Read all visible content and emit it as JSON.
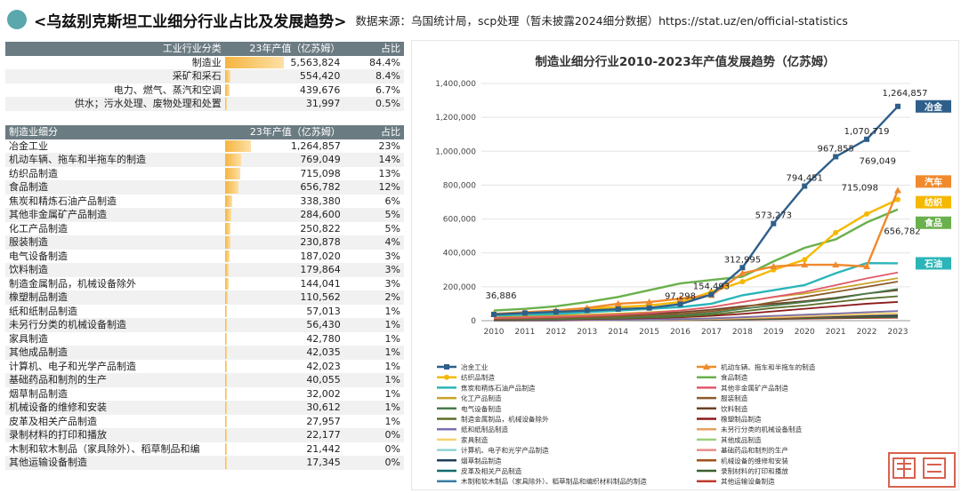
{
  "header": {
    "title": "<乌兹别克斯坦工业细分行业占比及发展趋势>",
    "source": "数据来源：乌国统计局，scp处理（暂未披露2024细分数据）https://stat.uz/en/official-statistics"
  },
  "table1": {
    "headers": [
      "工业行业分类",
      "23年产值（亿苏姆）",
      "占比"
    ],
    "rows": [
      {
        "name": "制造业",
        "value": "5,563,824",
        "share": "84.4%",
        "frac": 1.0
      },
      {
        "name": "采矿和采石",
        "value": "554,420",
        "share": "8.4%",
        "frac": 0.0996
      },
      {
        "name": "电力、燃气、蒸汽和空调",
        "value": "439,676",
        "share": "6.7%",
        "frac": 0.079
      },
      {
        "name": "供水；污水处理、废物处理和处置",
        "value": "31,997",
        "share": "0.5%",
        "frac": 0.0058
      }
    ]
  },
  "table2": {
    "headers": [
      "制造业细分",
      "23年产值（亿苏姆）",
      "占比"
    ],
    "rows": [
      {
        "name": "冶金工业",
        "value": "1,264,857",
        "share": "23%",
        "frac": 0.227
      },
      {
        "name": "机动车辆、拖车和半拖车的制造",
        "value": "769,049",
        "share": "14%",
        "frac": 0.138
      },
      {
        "name": "纺织品制造",
        "value": "715,098",
        "share": "13%",
        "frac": 0.129
      },
      {
        "name": "食品制造",
        "value": "656,782",
        "share": "12%",
        "frac": 0.118
      },
      {
        "name": "焦炭和精炼石油产品制造",
        "value": "338,380",
        "share": "6%",
        "frac": 0.061
      },
      {
        "name": "其他非金属矿产品制造",
        "value": "284,600",
        "share": "5%",
        "frac": 0.051
      },
      {
        "name": "化工产品制造",
        "value": "250,822",
        "share": "5%",
        "frac": 0.045
      },
      {
        "name": "服装制造",
        "value": "230,878",
        "share": "4%",
        "frac": 0.041
      },
      {
        "name": "电气设备制造",
        "value": "187,020",
        "share": "3%",
        "frac": 0.034
      },
      {
        "name": "饮料制造",
        "value": "179,864",
        "share": "3%",
        "frac": 0.032
      },
      {
        "name": "制造金属制品，机械设备除外",
        "value": "144,041",
        "share": "3%",
        "frac": 0.026
      },
      {
        "name": "橡塑制品制造",
        "value": "110,562",
        "share": "2%",
        "frac": 0.02
      },
      {
        "name": "纸和纸制品制造",
        "value": "57,013",
        "share": "1%",
        "frac": 0.01
      },
      {
        "name": "未另行分类的机械设备制造",
        "value": "56,430",
        "share": "1%",
        "frac": 0.01
      },
      {
        "name": "家具制造",
        "value": "42,780",
        "share": "1%",
        "frac": 0.008
      },
      {
        "name": "其他成品制造",
        "value": "42,035",
        "share": "1%",
        "frac": 0.008
      },
      {
        "name": "计算机、电子和光学产品制造",
        "value": "42,023",
        "share": "1%",
        "frac": 0.008
      },
      {
        "name": "基础药品和制剂的生产",
        "value": "40,055",
        "share": "1%",
        "frac": 0.007
      },
      {
        "name": "烟草制品制造",
        "value": "32,002",
        "share": "1%",
        "frac": 0.006
      },
      {
        "name": "机械设备的维修和安装",
        "value": "30,612",
        "share": "1%",
        "frac": 0.006
      },
      {
        "name": "皮革及相关产品制造",
        "value": "27,957",
        "share": "1%",
        "frac": 0.005
      },
      {
        "name": "录制材料的打印和播放",
        "value": "22,177",
        "share": "0%",
        "frac": 0.004
      },
      {
        "name": "木制和软木制品（家具除外）、稻草制品和编",
        "value": "21,442",
        "share": "0%",
        "frac": 0.004
      },
      {
        "name": "其他运输设备制造",
        "value": "17,345",
        "share": "0%",
        "frac": 0.003
      }
    ]
  },
  "chart_data": {
    "type": "line",
    "title": "制造业细分行业2010-2023年产值发展趋势（亿苏姆）",
    "x": [
      2010,
      2011,
      2012,
      2013,
      2014,
      2015,
      2016,
      2017,
      2018,
      2019,
      2020,
      2021,
      2022,
      2023
    ],
    "ylim": [
      0,
      1400000
    ],
    "yticks": [
      "0",
      "200,000",
      "400,000",
      "600,000",
      "800,000",
      "1,000,000",
      "1,200,000",
      "1,400,000"
    ],
    "grid": true,
    "legend_position": "bottom",
    "point_labels": [
      {
        "series": 0,
        "x": 2010,
        "text": "36,886"
      },
      {
        "series": 0,
        "x": 2016,
        "text": "97,298"
      },
      {
        "series": 0,
        "x": 2017,
        "text": "154,493"
      },
      {
        "series": 0,
        "x": 2018,
        "text": "312,995"
      },
      {
        "series": 0,
        "x": 2019,
        "text": "573,273"
      },
      {
        "series": 0,
        "x": 2020,
        "text": "794,451"
      },
      {
        "series": 0,
        "x": 2021,
        "text": "967,855"
      },
      {
        "series": 0,
        "x": 2022,
        "text": "1,070,719"
      },
      {
        "series": 0,
        "x": 2023,
        "text": "1,264,857"
      },
      {
        "series": 1,
        "x": 2023,
        "text": "769,049"
      },
      {
        "series": 2,
        "x": 2023,
        "text": "715,098"
      },
      {
        "series": 3,
        "x": 2023,
        "text": "656,782"
      }
    ],
    "tags": [
      {
        "series": 0,
        "text": "冶金",
        "color": "#2e5f8a"
      },
      {
        "series": 1,
        "text": "汽车",
        "color": "#f08a2c"
      },
      {
        "series": 2,
        "text": "纺织",
        "color": "#f5b800"
      },
      {
        "series": 3,
        "text": "食品",
        "color": "#6ab04c"
      },
      {
        "series": 4,
        "text": "石油",
        "color": "#2bb5b8"
      }
    ],
    "series": [
      {
        "name": "冶金工业",
        "color": "#2e5f8a",
        "marker": "square",
        "values": [
          36886,
          45000,
          52000,
          60000,
          68000,
          75000,
          97298,
          154493,
          312995,
          573273,
          794451,
          967855,
          1070719,
          1264857
        ]
      },
      {
        "name": "机动车辆、拖车和半拖车的制造",
        "color": "#f08a2c",
        "marker": "triangle",
        "values": [
          40000,
          50000,
          60000,
          75000,
          100000,
          110000,
          130000,
          150000,
          280000,
          320000,
          330000,
          330000,
          320000,
          769049
        ]
      },
      {
        "name": "纺织品制造",
        "color": "#f5b800",
        "marker": "circle",
        "values": [
          38000,
          45000,
          55000,
          70000,
          80000,
          90000,
          110000,
          170000,
          230000,
          300000,
          360000,
          520000,
          630000,
          715098
        ]
      },
      {
        "name": "食品制造",
        "color": "#6ab04c",
        "marker": "none",
        "values": [
          60000,
          70000,
          85000,
          110000,
          140000,
          180000,
          220000,
          240000,
          260000,
          350000,
          430000,
          480000,
          580000,
          656782
        ]
      },
      {
        "name": "焦炭和精炼石油产品制造",
        "color": "#2bb5b8",
        "marker": "none",
        "values": [
          30000,
          35000,
          40000,
          50000,
          60000,
          70000,
          80000,
          100000,
          150000,
          180000,
          210000,
          280000,
          340000,
          338380
        ]
      },
      {
        "name": "其他非金属矿产品制造",
        "color": "#e05a6b",
        "marker": "none",
        "values": [
          15000,
          18000,
          22000,
          28000,
          35000,
          45000,
          60000,
          80000,
          110000,
          140000,
          170000,
          210000,
          250000,
          284600
        ]
      },
      {
        "name": "化工产品制造",
        "color": "#c9a227",
        "marker": "none",
        "values": [
          20000,
          24000,
          30000,
          36000,
          42000,
          50000,
          60000,
          80000,
          110000,
          140000,
          160000,
          190000,
          220000,
          250822
        ]
      },
      {
        "name": "服装制造",
        "color": "#8b5a2b",
        "marker": "none",
        "values": [
          10000,
          13000,
          16000,
          20000,
          25000,
          32000,
          40000,
          55000,
          80000,
          110000,
          140000,
          170000,
          200000,
          230878
        ]
      },
      {
        "name": "电气设备制造",
        "color": "#4a7a4a",
        "marker": "none",
        "values": [
          8000,
          10000,
          12000,
          15000,
          20000,
          25000,
          32000,
          45000,
          70000,
          90000,
          110000,
          130000,
          160000,
          187020
        ]
      },
      {
        "name": "饮料制造",
        "color": "#6b4226",
        "marker": "none",
        "values": [
          15000,
          18000,
          22000,
          27000,
          32000,
          40000,
          50000,
          65000,
          85000,
          100000,
          115000,
          135000,
          160000,
          179864
        ]
      },
      {
        "name": "制造金属制品，机械设备除外",
        "color": "#5a6e2a",
        "marker": "none",
        "values": [
          6000,
          7500,
          9000,
          11000,
          14000,
          18000,
          24000,
          35000,
          55000,
          75000,
          90000,
          110000,
          130000,
          144041
        ]
      },
      {
        "name": "橡塑制品制造",
        "color": "#8b1a1a",
        "marker": "none",
        "values": [
          5000,
          6000,
          7500,
          9000,
          12000,
          15000,
          20000,
          28000,
          40000,
          55000,
          70000,
          85000,
          100000,
          110562
        ]
      },
      {
        "name": "纸和纸制品制造",
        "color": "#7b6fb0",
        "marker": "none",
        "values": [
          2000,
          2500,
          3000,
          4000,
          5000,
          7000,
          9000,
          13000,
          20000,
          28000,
          35000,
          42000,
          50000,
          57013
        ]
      },
      {
        "name": "未另行分类的机械设备制造",
        "color": "#e6a15c",
        "marker": "none",
        "values": [
          2500,
          3000,
          3500,
          4500,
          6000,
          8000,
          10000,
          14000,
          20000,
          28000,
          35000,
          42000,
          50000,
          56430
        ]
      },
      {
        "name": "家具制造",
        "color": "#f7d36b",
        "marker": "none",
        "values": [
          2000,
          2400,
          2800,
          3500,
          4500,
          6000,
          8000,
          11000,
          16000,
          22000,
          28000,
          34000,
          39000,
          42780
        ]
      },
      {
        "name": "其他成品制造",
        "color": "#9bcf7a",
        "marker": "none",
        "values": [
          1800,
          2200,
          2600,
          3300,
          4200,
          5500,
          7500,
          10500,
          15500,
          21000,
          27000,
          33000,
          38000,
          42035
        ]
      },
      {
        "name": "计算机、电子和光学产品制造",
        "color": "#8fd3d6",
        "marker": "none",
        "values": [
          3000,
          3500,
          4000,
          5000,
          6000,
          7500,
          9000,
          12000,
          17000,
          23000,
          29000,
          35000,
          39000,
          42023
        ]
      },
      {
        "name": "基础药品和制剂的生产",
        "color": "#e88a8a",
        "marker": "none",
        "values": [
          1500,
          1900,
          2300,
          3000,
          3800,
          5000,
          6800,
          9500,
          14000,
          19000,
          25000,
          31000,
          36000,
          40055
        ]
      },
      {
        "name": "烟草制品制造",
        "color": "#1f3f5b",
        "marker": "none",
        "values": [
          4000,
          4500,
          5000,
          6000,
          7000,
          8500,
          10000,
          13000,
          17000,
          21000,
          24000,
          27000,
          30000,
          32002
        ]
      },
      {
        "name": "机械设备的维修和安装",
        "color": "#a0521b",
        "marker": "none",
        "values": [
          1200,
          1500,
          1800,
          2400,
          3100,
          4000,
          5500,
          7500,
          11000,
          15000,
          19000,
          23000,
          27000,
          30612
        ]
      },
      {
        "name": "皮革及相关产品制造",
        "color": "#0f6b6b",
        "marker": "none",
        "values": [
          1000,
          1300,
          1600,
          2100,
          2700,
          3600,
          5000,
          7000,
          10000,
          14000,
          18000,
          22000,
          25000,
          27957
        ]
      },
      {
        "name": "录制材料的打印和播放",
        "color": "#3a5f2a",
        "marker": "none",
        "values": [
          1200,
          1400,
          1700,
          2100,
          2700,
          3400,
          4500,
          6000,
          8500,
          11500,
          14500,
          17500,
          20000,
          22177
        ]
      },
      {
        "name": "木制和软木制品（家具除外）、稻草制品和编织材料制品的制造",
        "color": "#3a7ca5",
        "marker": "none",
        "values": [
          900,
          1100,
          1400,
          1800,
          2300,
          3000,
          4000,
          5500,
          8000,
          11000,
          14000,
          17000,
          19500,
          21442
        ]
      },
      {
        "name": "其他运输设备制造",
        "color": "#c0392b",
        "marker": "none",
        "values": [
          700,
          900,
          1100,
          1400,
          1800,
          2400,
          3200,
          4500,
          6500,
          9000,
          11500,
          14000,
          16000,
          17345
        ]
      }
    ]
  }
}
